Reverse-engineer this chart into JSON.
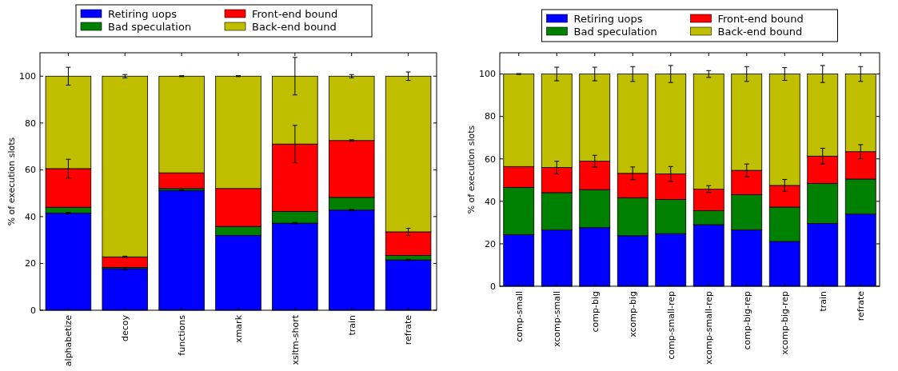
{
  "chart_data": [
    {
      "type": "bar",
      "stacked": true,
      "ylabel": "% of execution slots",
      "categories": [
        "alphabetize",
        "decoy",
        "functions",
        "xmark",
        "xsltm-short",
        "train",
        "refrate"
      ],
      "ylim": [
        0,
        110
      ],
      "yticks": [
        0,
        20,
        40,
        60,
        80,
        100
      ],
      "legend": "top",
      "series": [
        {
          "name": "Retiring uops",
          "color": "#0000ff",
          "values": [
            41.5,
            17.8,
            51.2,
            32,
            37.2,
            42.8,
            21.5
          ],
          "errors": [
            0.3,
            0.5,
            0.2,
            null,
            0.3,
            0.3,
            0.3
          ]
        },
        {
          "name": "Bad speculation",
          "color": "#008000",
          "values": [
            2.5,
            0.5,
            0.8,
            3.8,
            5,
            5.4,
            1.9
          ]
        },
        {
          "name": "Front-end bound",
          "color": "#ff0000",
          "values": [
            16.5,
            4.5,
            6.7,
            16.2,
            28.8,
            24.3,
            10.1
          ],
          "errors": [
            4,
            0.3,
            null,
            null,
            8,
            0.3,
            1.5
          ]
        },
        {
          "name": "Back-end bound",
          "color": "#bfbf00",
          "values": [
            39.5,
            77.2,
            41.3,
            48,
            29,
            27.5,
            66.5
          ],
          "errors": [
            3.8,
            0.7,
            0.2,
            0.2,
            8,
            0.7,
            1.8
          ]
        }
      ]
    },
    {
      "type": "bar",
      "stacked": true,
      "ylabel": "% of execution slots",
      "categories": [
        "comp-small",
        "xcomp-small",
        "comp-big",
        "xcomp-big",
        "comp-small-rep",
        "xcomp-small-rep",
        "comp-big-rep",
        "xcomp-big-rep",
        "train",
        "refrate"
      ],
      "ylim": [
        0,
        110
      ],
      "yticks": [
        0,
        20,
        40,
        60,
        80,
        100
      ],
      "legend": "top",
      "series": [
        {
          "name": "Retiring uops",
          "color": "#0000ff",
          "values": [
            24.3,
            26.5,
            27.6,
            23.8,
            24.8,
            29,
            26.6,
            21.1,
            29.6,
            34
          ]
        },
        {
          "name": "Bad speculation",
          "color": "#008000",
          "values": [
            22.3,
            17.6,
            17.9,
            17.9,
            16.1,
            6.6,
            16.5,
            16.2,
            18.8,
            16.5
          ]
        },
        {
          "name": "Front-end bound",
          "color": "#ff0000",
          "values": [
            9.8,
            11.8,
            13.4,
            11.5,
            12,
            10.2,
            11.5,
            10.2,
            12.9,
            12.9
          ],
          "errors": [
            null,
            3,
            2.8,
            3,
            3.5,
            1.6,
            3,
            2.8,
            3.7,
            3.3
          ]
        },
        {
          "name": "Back-end bound",
          "color": "#bfbf00",
          "values": [
            43.6,
            44.1,
            41.1,
            46.8,
            47.1,
            54.2,
            45.4,
            52.5,
            38.7,
            36.6
          ],
          "errors": [
            0.2,
            3.2,
            3.2,
            3.5,
            4,
            1.6,
            3.5,
            3,
            4,
            3.5
          ]
        }
      ]
    }
  ]
}
